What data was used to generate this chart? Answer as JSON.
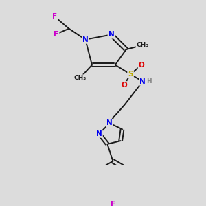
{
  "bg_color": "#dcdcdc",
  "bond_color": "#1a1a1a",
  "bond_width": 1.4,
  "atom_colors": {
    "N": "#0000ee",
    "F": "#cc00cc",
    "S": "#bbaa00",
    "O": "#dd0000",
    "H": "#888888",
    "C": "#1a1a1a"
  },
  "font_size_atom": 7.5,
  "font_size_small": 6.5
}
